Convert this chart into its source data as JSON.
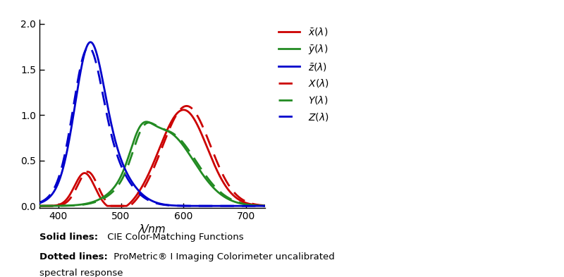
{
  "xlabel": "λ/nm",
  "xlim": [
    370,
    730
  ],
  "ylim": [
    -0.02,
    2.05
  ],
  "xticks": [
    400,
    500,
    600,
    700
  ],
  "yticks": [
    0.0,
    0.5,
    1.0,
    1.5,
    2.0
  ],
  "colors": {
    "red": "#cc0000",
    "green": "#228B22",
    "blue": "#0000cc"
  },
  "caption_bold1": "Solid lines:",
  "caption_text1": " CIE Color-Matching Functions",
  "caption_bold2": "Dotted lines:",
  "caption_text2": " ProMetric® I Imaging Colorimeter uncalibrated",
  "caption_text3": "spectral response"
}
